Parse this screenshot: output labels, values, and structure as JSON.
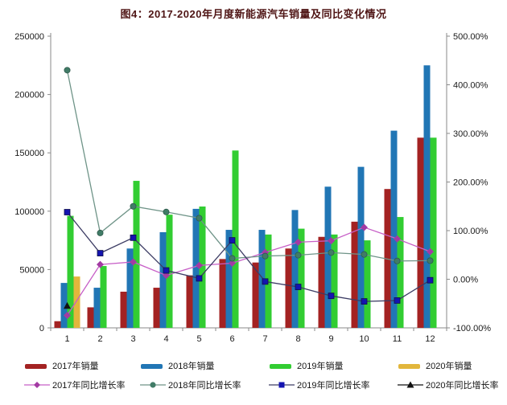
{
  "title": "图4：2017-2020年月度新能源汽车销量及同比变化情况",
  "chart_data": {
    "type": "bar+line",
    "categories": [
      "1",
      "2",
      "3",
      "4",
      "5",
      "6",
      "7",
      "8",
      "9",
      "10",
      "11",
      "12"
    ],
    "bar_series": [
      {
        "name": "2017年销量",
        "color": "#a32222",
        "values": [
          5700,
          17600,
          31000,
          34400,
          45000,
          59000,
          56000,
          68000,
          78000,
          91000,
          119000,
          163000
        ]
      },
      {
        "name": "2018年销量",
        "color": "#2176b5",
        "values": [
          38500,
          34400,
          68000,
          82000,
          102000,
          84000,
          84000,
          101000,
          121000,
          138000,
          169000,
          225000
        ]
      },
      {
        "name": "2019年销量",
        "color": "#32cd32",
        "values": [
          96000,
          53000,
          126000,
          97000,
          104000,
          152000,
          80000,
          85000,
          80000,
          75000,
          95000,
          163000
        ]
      },
      {
        "name": "2020年销量",
        "color": "#e2b63c",
        "values": [
          44000,
          null,
          null,
          null,
          null,
          null,
          null,
          null,
          null,
          null,
          null,
          null
        ]
      }
    ],
    "line_series": [
      {
        "name": "2017年同比增长率",
        "color": "#c75fc7",
        "marker": "diamond",
        "marker_color": "#a33ba3",
        "values": [
          -74.4,
          30.3,
          35.6,
          7.9,
          28.4,
          33.0,
          55.2,
          76.3,
          79.1,
          106.7,
          83.0,
          56.8
        ]
      },
      {
        "name": "2018年同比增长率",
        "color": "#6f9488",
        "marker": "circle",
        "marker_color": "#417c67",
        "values": [
          430,
          95.2,
          150,
          138.4,
          125.6,
          42.9,
          47.7,
          49.5,
          54.8,
          51.0,
          37.6,
          38.2
        ]
      },
      {
        "name": "2019年同比增长率",
        "color": "#3c3c64",
        "marker": "square",
        "marker_color": "#1414b0",
        "values": [
          138,
          53.6,
          85.4,
          18.1,
          1.8,
          80,
          -4.7,
          -15.8,
          -34.2,
          -45.6,
          -43.7,
          -2
        ]
      },
      {
        "name": "2020年同比增长率",
        "color": "#111111",
        "marker": "triangle",
        "marker_color": "#111111",
        "values": [
          -54.4,
          null,
          null,
          null,
          null,
          null,
          null,
          null,
          null,
          null,
          null,
          null
        ]
      }
    ],
    "left_axis": {
      "min": 0,
      "max": 250000,
      "ticks": [
        "0",
        "50000",
        "100000",
        "150000",
        "200000",
        "250000"
      ]
    },
    "right_axis": {
      "min": -100,
      "max": 500,
      "ticks": [
        "-100.00%",
        "0.00%",
        "100.00%",
        "200.00%",
        "300.00%",
        "400.00%",
        "500.00%"
      ]
    },
    "grid": "off",
    "legend_position": "bottom"
  }
}
